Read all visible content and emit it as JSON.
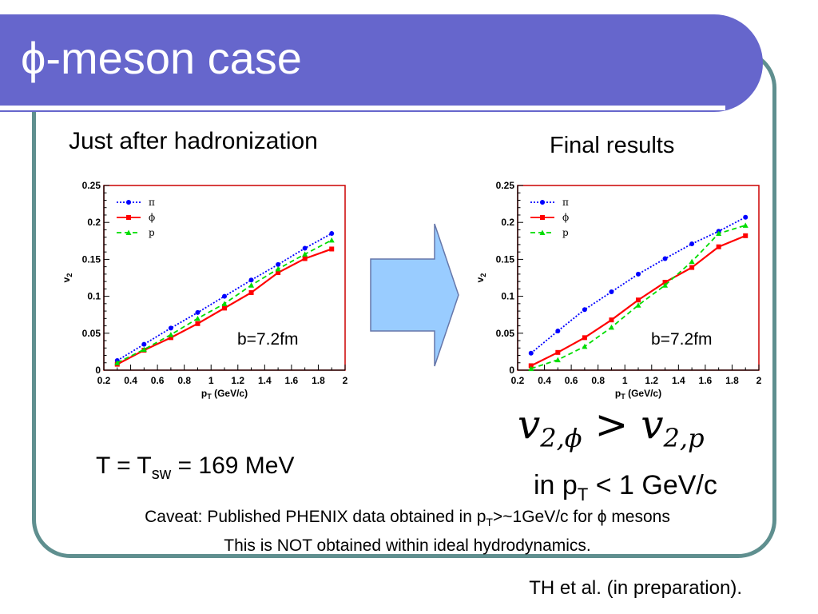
{
  "slide": {
    "title_symbol": "ϕ",
    "title_rest": "-meson case",
    "left_heading": "Just after hadronization",
    "right_heading": "Final results",
    "temperature_note": {
      "prefix": "T = T",
      "sub": "sw",
      "suffix": " = 169 MeV"
    },
    "formula": {
      "lhs_v": "v",
      "lhs_sub": "2,ϕ",
      "op": " > ",
      "rhs_v": "v",
      "rhs_sub": "2,p"
    },
    "pt_condition": {
      "prefix": "in p",
      "sub": "T",
      "suffix": " < 1 GeV/c"
    },
    "caveat_line1": {
      "a": "Caveat: Published PHENIX data obtained in p",
      "sub": "T",
      "b": ">~1GeV/c for ϕ mesons"
    },
    "caveat_line2": "This is NOT obtained within ideal hydrodynamics.",
    "credit": "TH et al. (in preparation)."
  },
  "colors": {
    "title_bar": "#6666cc",
    "frame": "#5f8f8f",
    "arrow_fill": "#99ccff",
    "pi": "#0000ff",
    "phi": "#ff0000",
    "p": "#00dd00",
    "plot_frame": "#cc0000"
  },
  "chart_data": [
    {
      "type": "line",
      "annotation": "b=7.2fm",
      "xlabel": "p_T (GeV/c)",
      "ylabel": "v_2",
      "xlim": [
        0.2,
        2.0
      ],
      "ylim": [
        0,
        0.25
      ],
      "x_ticks": [
        "0.2",
        "0.4",
        "0.6",
        "0.8",
        "1",
        "1.2",
        "1.4",
        "1.6",
        "1.8",
        "2"
      ],
      "y_ticks": [
        "0",
        "0.05",
        "0.1",
        "0.15",
        "0.2",
        "0.25"
      ],
      "legend_position": "top-left",
      "series": [
        {
          "name": "π",
          "color": "#0000ff",
          "dash": "2,2",
          "marker": "circle",
          "x": [
            0.3,
            0.5,
            0.7,
            0.9,
            1.1,
            1.3,
            1.5,
            1.7,
            1.9
          ],
          "y": [
            0.013,
            0.035,
            0.057,
            0.078,
            0.1,
            0.122,
            0.143,
            0.165,
            0.185
          ]
        },
        {
          "name": "ϕ",
          "color": "#ff0000",
          "dash": "",
          "marker": "square",
          "x": [
            0.3,
            0.5,
            0.7,
            0.9,
            1.1,
            1.3,
            1.5,
            1.7,
            1.9
          ],
          "y": [
            0.008,
            0.027,
            0.044,
            0.063,
            0.084,
            0.105,
            0.132,
            0.151,
            0.164
          ]
        },
        {
          "name": "p",
          "color": "#00dd00",
          "dash": "6,4",
          "marker": "triangle",
          "x": [
            0.3,
            0.5,
            0.7,
            0.9,
            1.1,
            1.3,
            1.5,
            1.7,
            1.9
          ],
          "y": [
            0.01,
            0.028,
            0.048,
            0.07,
            0.09,
            0.115,
            0.137,
            0.157,
            0.176
          ]
        }
      ]
    },
    {
      "type": "line",
      "annotation": "b=7.2fm",
      "xlabel": "p_T (GeV/c)",
      "ylabel": "v_2",
      "xlim": [
        0.2,
        2.0
      ],
      "ylim": [
        0,
        0.25
      ],
      "x_ticks": [
        "0.2",
        "0.4",
        "0.6",
        "0.8",
        "1",
        "1.2",
        "1.4",
        "1.6",
        "1.8",
        "2"
      ],
      "y_ticks": [
        "0",
        "0.05",
        "0.1",
        "0.15",
        "0.2",
        "0.25"
      ],
      "legend_position": "top-left",
      "series": [
        {
          "name": "π",
          "color": "#0000ff",
          "dash": "2,2",
          "marker": "circle",
          "x": [
            0.3,
            0.5,
            0.7,
            0.9,
            1.1,
            1.3,
            1.5,
            1.7,
            1.9
          ],
          "y": [
            0.023,
            0.053,
            0.082,
            0.106,
            0.13,
            0.151,
            0.171,
            0.188,
            0.207
          ]
        },
        {
          "name": "ϕ",
          "color": "#ff0000",
          "dash": "",
          "marker": "square",
          "x": [
            0.3,
            0.5,
            0.7,
            0.9,
            1.1,
            1.3,
            1.5,
            1.7,
            1.9
          ],
          "y": [
            0.006,
            0.024,
            0.044,
            0.068,
            0.095,
            0.119,
            0.139,
            0.167,
            0.182
          ]
        },
        {
          "name": "p",
          "color": "#00dd00",
          "dash": "6,4",
          "marker": "triangle",
          "x": [
            0.3,
            0.5,
            0.7,
            0.9,
            1.1,
            1.3,
            1.5,
            1.7,
            1.9
          ],
          "y": [
            0.002,
            0.014,
            0.032,
            0.058,
            0.088,
            0.115,
            0.147,
            0.185,
            0.196
          ]
        }
      ]
    }
  ]
}
